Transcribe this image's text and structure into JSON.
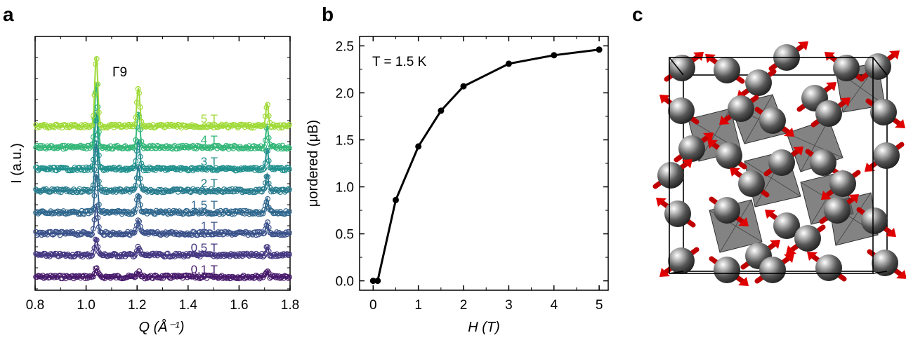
{
  "panels": {
    "a": {
      "letter": "a"
    },
    "b": {
      "letter": "b"
    },
    "c": {
      "letter": "c"
    }
  },
  "chart_data": [
    {
      "panel": "a",
      "type": "line",
      "xlabel": "Q (Å⁻¹)",
      "ylabel": "I (a.u.)",
      "xlim": [
        0.8,
        1.8
      ],
      "xticks": [
        "0.8",
        "1.0",
        "1.2",
        "1.4",
        "1.6",
        "1.8"
      ],
      "peak_label": "Γ9",
      "peaks_Q": [
        1.04,
        1.205,
        1.71
      ],
      "series": [
        {
          "name": "0.1 T",
          "color": "#481a6c",
          "peak_heights": [
            0.45,
            0.25,
            0.3
          ]
        },
        {
          "name": "0.5 T",
          "color": "#443983",
          "peak_heights": [
            0.9,
            0.4,
            0.45
          ]
        },
        {
          "name": "1 T",
          "color": "#3b528b",
          "peak_heights": [
            1.5,
            0.7,
            0.6
          ]
        },
        {
          "name": "1.5 T",
          "color": "#31688e",
          "peak_heights": [
            2.1,
            1.0,
            0.75
          ]
        },
        {
          "name": "2 T",
          "color": "#287c8e",
          "peak_heights": [
            2.6,
            1.3,
            0.9
          ]
        },
        {
          "name": "3 T",
          "color": "#20908d",
          "peak_heights": [
            3.1,
            1.6,
            1.05
          ]
        },
        {
          "name": "4 T",
          "color": "#35b779",
          "peak_heights": [
            3.5,
            1.9,
            1.15
          ]
        },
        {
          "name": "5 T",
          "color": "#a0da39",
          "peak_heights": [
            3.8,
            2.1,
            1.25
          ]
        }
      ]
    },
    {
      "panel": "b",
      "type": "line",
      "annotation": "T = 1.5 K",
      "xlabel": "H (T)",
      "ylabel": "μordered (μB)",
      "xlim": [
        -0.3,
        5.2
      ],
      "ylim": [
        -0.1,
        2.6
      ],
      "xticks": [
        "0",
        "1",
        "2",
        "3",
        "4",
        "5"
      ],
      "yticks": [
        "0.0",
        "0.5",
        "1.0",
        "1.5",
        "2.0",
        "2.5"
      ],
      "x": [
        0,
        0.1,
        0.5,
        1,
        1.5,
        2,
        3,
        4,
        5
      ],
      "y": [
        0.0,
        0.0,
        0.86,
        1.43,
        1.81,
        2.07,
        2.31,
        2.4,
        2.46
      ]
    }
  ]
}
